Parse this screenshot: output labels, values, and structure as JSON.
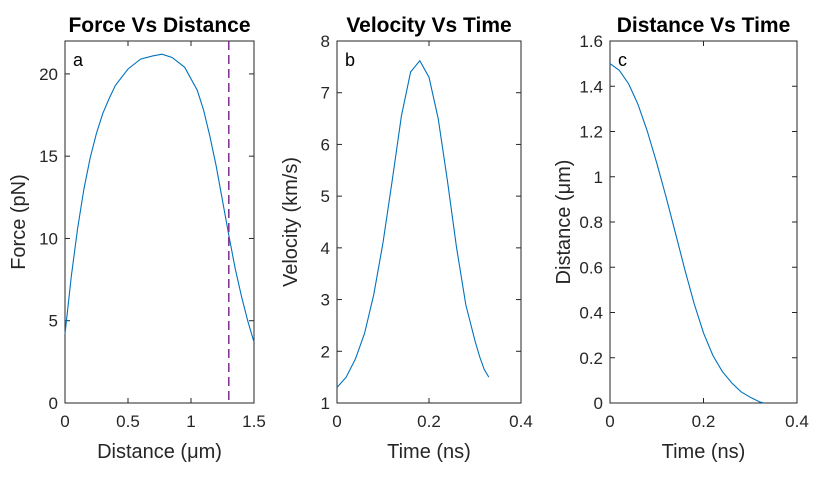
{
  "chart_data": [
    {
      "type": "line",
      "panel_label": "a",
      "title": "Force Vs Distance",
      "xlabel": "Distance (μm)",
      "ylabel": "Force (pN)",
      "xlim": [
        0,
        1.5
      ],
      "ylim": [
        0,
        22
      ],
      "xticks": [
        0,
        0.5,
        1,
        1.5
      ],
      "xtick_labels": [
        "0",
        "0.5",
        "1",
        "1.5"
      ],
      "yticks": [
        0,
        5,
        10,
        15,
        20
      ],
      "ytick_labels": [
        "0",
        "5",
        "10",
        "15",
        "20"
      ],
      "series": [
        {
          "name": "force",
          "color": "#0072BD",
          "x": [
            0,
            0.05,
            0.1,
            0.15,
            0.2,
            0.25,
            0.3,
            0.35,
            0.4,
            0.5,
            0.6,
            0.7,
            0.77,
            0.85,
            0.95,
            1.05,
            1.1,
            1.15,
            1.2,
            1.25,
            1.3,
            1.35,
            1.4,
            1.45,
            1.5
          ],
          "y": [
            4.2,
            7.7,
            10.6,
            13.0,
            14.9,
            16.4,
            17.6,
            18.5,
            19.3,
            20.3,
            20.9,
            21.1,
            21.2,
            21.0,
            20.4,
            19.0,
            17.8,
            16.2,
            14.4,
            12.3,
            10.2,
            8.2,
            6.5,
            5.0,
            3.7
          ]
        }
      ],
      "reference_line": {
        "x": 1.3,
        "color": "#7E2F8E",
        "style": "dashed"
      }
    },
    {
      "type": "line",
      "panel_label": "b",
      "title": "Velocity Vs Time",
      "xlabel": "Time (ns)",
      "ylabel": "Velocity (km/s)",
      "xlim": [
        0,
        0.4
      ],
      "ylim": [
        1,
        8
      ],
      "xticks": [
        0,
        0.2,
        0.4
      ],
      "xtick_labels": [
        "0",
        "0.2",
        "0.4"
      ],
      "yticks": [
        1,
        2,
        3,
        4,
        5,
        6,
        7,
        8
      ],
      "ytick_labels": [
        "1",
        "2",
        "3",
        "4",
        "5",
        "6",
        "7",
        "8"
      ],
      "series": [
        {
          "name": "velocity",
          "color": "#0072BD",
          "x": [
            0,
            0.02,
            0.04,
            0.06,
            0.08,
            0.1,
            0.12,
            0.14,
            0.16,
            0.18,
            0.2,
            0.22,
            0.24,
            0.26,
            0.28,
            0.3,
            0.31,
            0.32,
            0.33
          ],
          "y": [
            1.3,
            1.5,
            1.85,
            2.35,
            3.1,
            4.1,
            5.3,
            6.55,
            7.4,
            7.62,
            7.3,
            6.5,
            5.3,
            4.0,
            2.9,
            2.2,
            1.9,
            1.65,
            1.5
          ]
        }
      ]
    },
    {
      "type": "line",
      "panel_label": "c",
      "title": "Distance Vs Time",
      "xlabel": "Time (ns)",
      "ylabel": "Distance (μm)",
      "xlim": [
        0,
        0.4
      ],
      "ylim": [
        0,
        1.6
      ],
      "xticks": [
        0,
        0.2,
        0.4
      ],
      "xtick_labels": [
        "0",
        "0.2",
        "0.4"
      ],
      "yticks": [
        0,
        0.2,
        0.4,
        0.6,
        0.8,
        1,
        1.2,
        1.4,
        1.6
      ],
      "ytick_labels": [
        "0",
        "0.2",
        "0.4",
        "0.6",
        "0.8",
        "1",
        "1.2",
        "1.4",
        "1.6"
      ],
      "series": [
        {
          "name": "distance",
          "color": "#0072BD",
          "x": [
            0,
            0.02,
            0.04,
            0.06,
            0.08,
            0.1,
            0.12,
            0.14,
            0.16,
            0.18,
            0.2,
            0.22,
            0.24,
            0.26,
            0.28,
            0.3,
            0.32,
            0.33
          ],
          "y": [
            1.5,
            1.47,
            1.41,
            1.32,
            1.2,
            1.06,
            0.91,
            0.75,
            0.59,
            0.44,
            0.31,
            0.21,
            0.14,
            0.09,
            0.05,
            0.025,
            0.005,
            0
          ]
        }
      ]
    }
  ]
}
